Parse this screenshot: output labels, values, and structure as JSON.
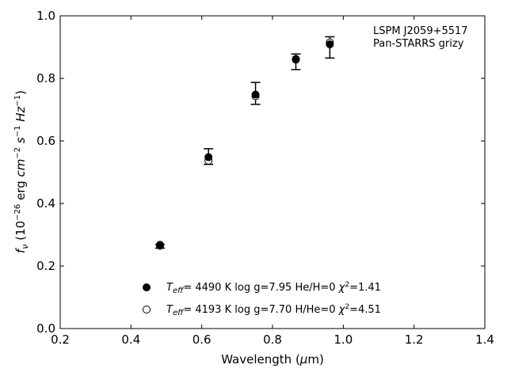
{
  "chart_data": {
    "type": "scatter",
    "xlabel": {
      "pre": "Wavelength (",
      "sym": "μ",
      "post": "m)"
    },
    "ylabel": {
      "f": "f",
      "nu": "ν",
      "mid": " (10",
      "e1": "−26",
      "erg": " erg ",
      "cm": "cm",
      "e2": "−2",
      "s": " s",
      "e3": "−1",
      "hz": " Hz",
      "e4": "−1",
      "close": ")"
    },
    "xlim": [
      0.2,
      1.4
    ],
    "ylim": [
      0.0,
      1.0
    ],
    "xticks": [
      "0.2",
      "0.4",
      "0.6",
      "0.8",
      "1.0",
      "1.2",
      "1.4"
    ],
    "xtick_values": [
      0.2,
      0.4,
      0.6,
      0.8,
      1.0,
      1.2,
      1.4
    ],
    "yticks": [
      "0.0",
      "0.2",
      "0.4",
      "0.6",
      "0.8",
      "1.0"
    ],
    "ytick_values": [
      0.0,
      0.2,
      0.4,
      0.6,
      0.8,
      1.0
    ],
    "annotation": [
      "LSPM J2059+5517",
      "Pan-STARRS grizy"
    ],
    "observed": {
      "x": [
        0.482,
        0.619,
        0.752,
        0.866,
        0.962
      ],
      "y": [
        0.263,
        0.55,
        0.752,
        0.853,
        0.899
      ],
      "err": [
        0.006,
        0.025,
        0.035,
        0.025,
        0.034
      ]
    },
    "series": [
      {
        "marker": "filled-circle",
        "teff": "4490 K",
        "logg": "log g=7.95",
        "comp": "He/H=0",
        "chi2": "=1.41",
        "x": [
          0.482,
          0.619,
          0.752,
          0.866,
          0.962
        ],
        "y": [
          0.265,
          0.548,
          0.748,
          0.86,
          0.909
        ]
      },
      {
        "marker": "open-circle",
        "teff": "4193 K",
        "logg": "log g=7.70",
        "comp": "H/He=0",
        "chi2": "=4.51",
        "x": [
          0.482,
          0.619,
          0.752,
          0.866,
          0.962
        ],
        "y": [
          0.268,
          0.537,
          0.743,
          0.862,
          0.915
        ]
      }
    ]
  }
}
